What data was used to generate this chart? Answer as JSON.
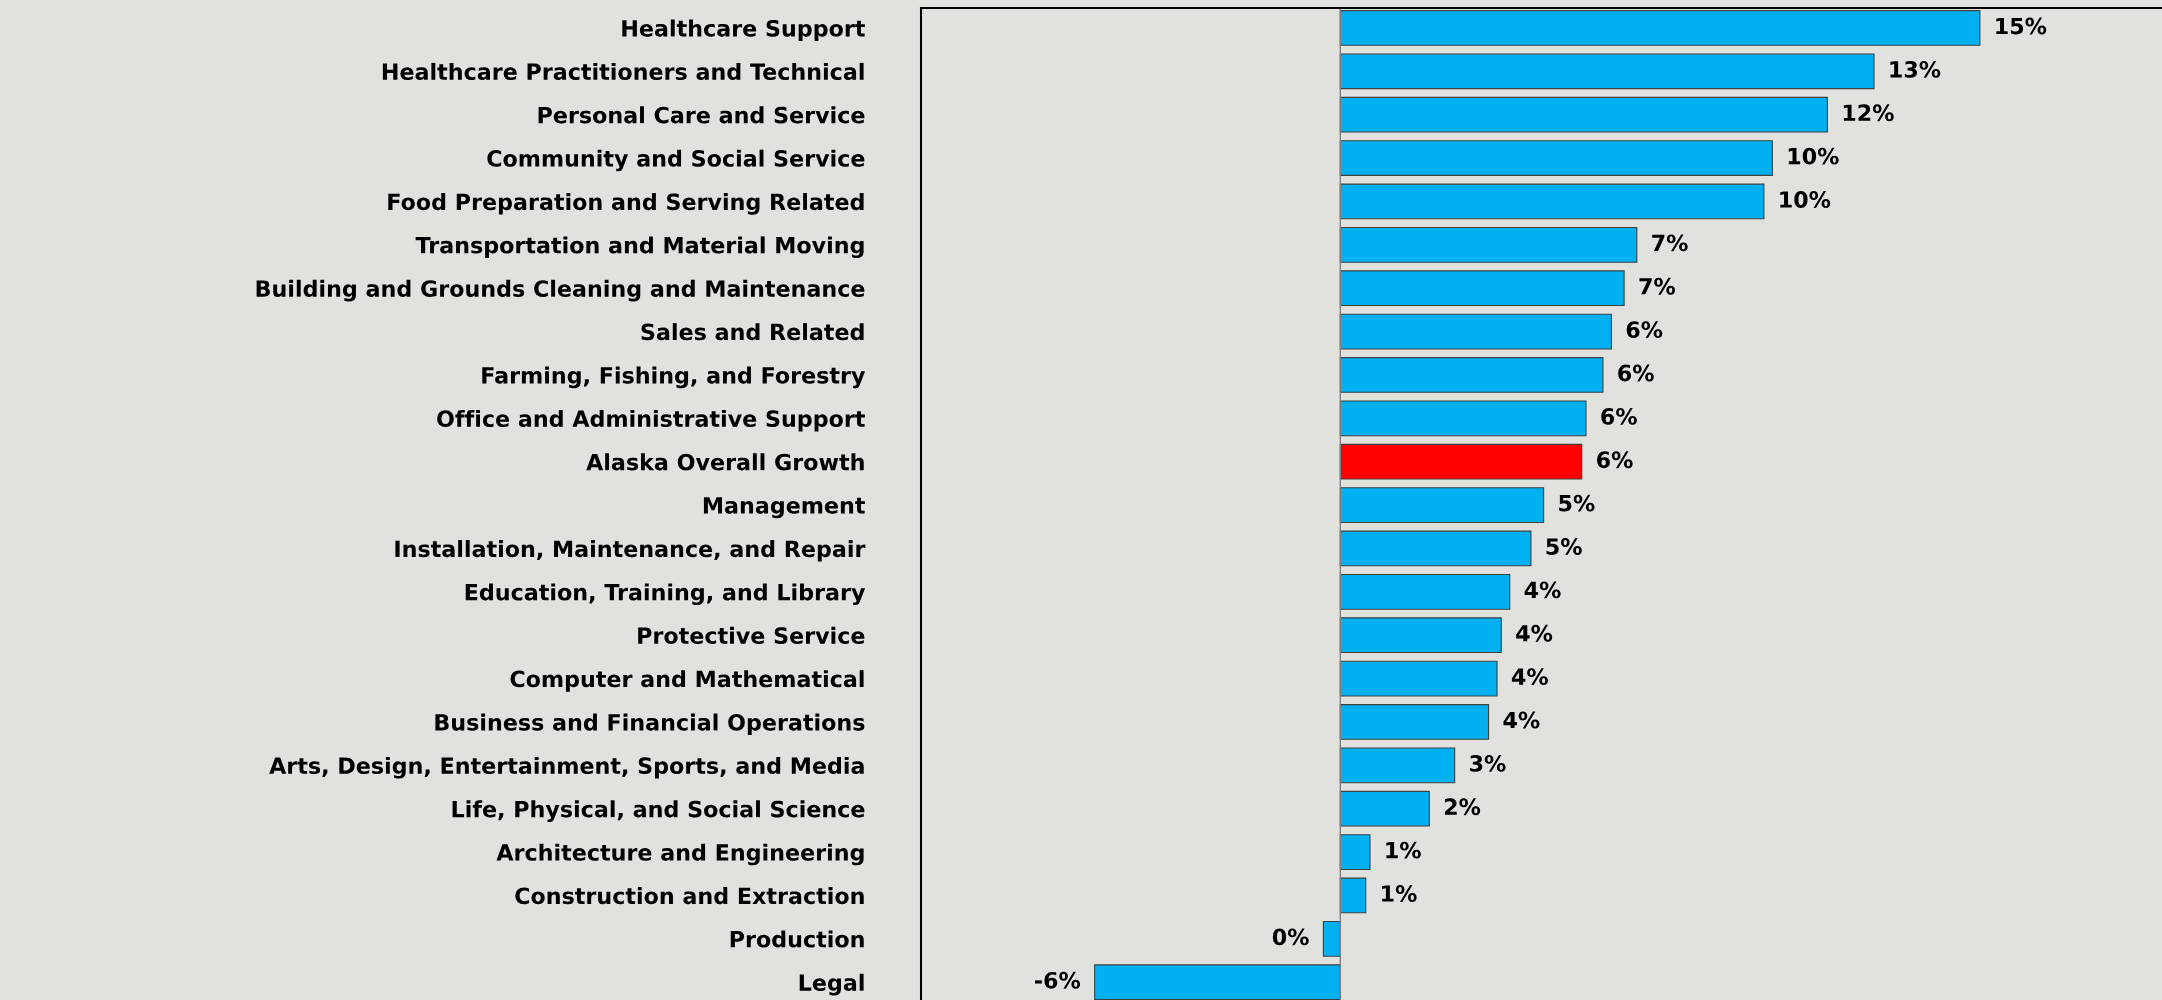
{
  "chart_data": {
    "type": "bar",
    "orientation": "horizontal",
    "categories": [
      "Healthcare Support",
      "Healthcare Practitioners and Technical",
      "Personal Care and Service",
      "Community and Social Service",
      "Food Preparation and Serving Related",
      "Transportation and Material Moving",
      "Building and Grounds Cleaning and Maintenance",
      "Sales and Related",
      "Farming, Fishing, and Forestry",
      "Office and Administrative Support",
      "Alaska Overall Growth",
      "Management",
      "Installation, Maintenance, and Repair",
      "Education, Training, and Library",
      "Protective Service",
      "Computer and Mathematical",
      "Business and Financial Operations",
      "Arts, Design, Entertainment, Sports, and Media",
      "Life, Physical, and Social Science",
      "Architecture and Engineering",
      "Construction and Extraction",
      "Production",
      "Legal"
    ],
    "values": [
      15.1,
      12.6,
      11.5,
      10.2,
      10.0,
      7.0,
      6.7,
      6.4,
      6.2,
      5.8,
      5.7,
      4.8,
      4.5,
      4.0,
      3.8,
      3.7,
      3.5,
      2.7,
      2.1,
      0.7,
      0.6,
      -0.4,
      -5.8
    ],
    "value_labels": [
      "15%",
      "13%",
      "12%",
      "10%",
      "10%",
      "7%",
      "7%",
      "6%",
      "6%",
      "6%",
      "6%",
      "5%",
      "5%",
      "4%",
      "4%",
      "4%",
      "4%",
      "3%",
      "2%",
      "1%",
      "1%",
      "0%",
      "-6%"
    ],
    "colors": [
      "#00b0f0",
      "#00b0f0",
      "#00b0f0",
      "#00b0f0",
      "#00b0f0",
      "#00b0f0",
      "#00b0f0",
      "#00b0f0",
      "#00b0f0",
      "#00b0f0",
      "#ff0000",
      "#00b0f0",
      "#00b0f0",
      "#00b0f0",
      "#00b0f0",
      "#00b0f0",
      "#00b0f0",
      "#00b0f0",
      "#00b0f0",
      "#00b0f0",
      "#00b0f0",
      "#00b0f0",
      "#00b0f0"
    ],
    "xlim": [
      -9.9,
      19.4
    ],
    "grid": false,
    "legend": false
  }
}
